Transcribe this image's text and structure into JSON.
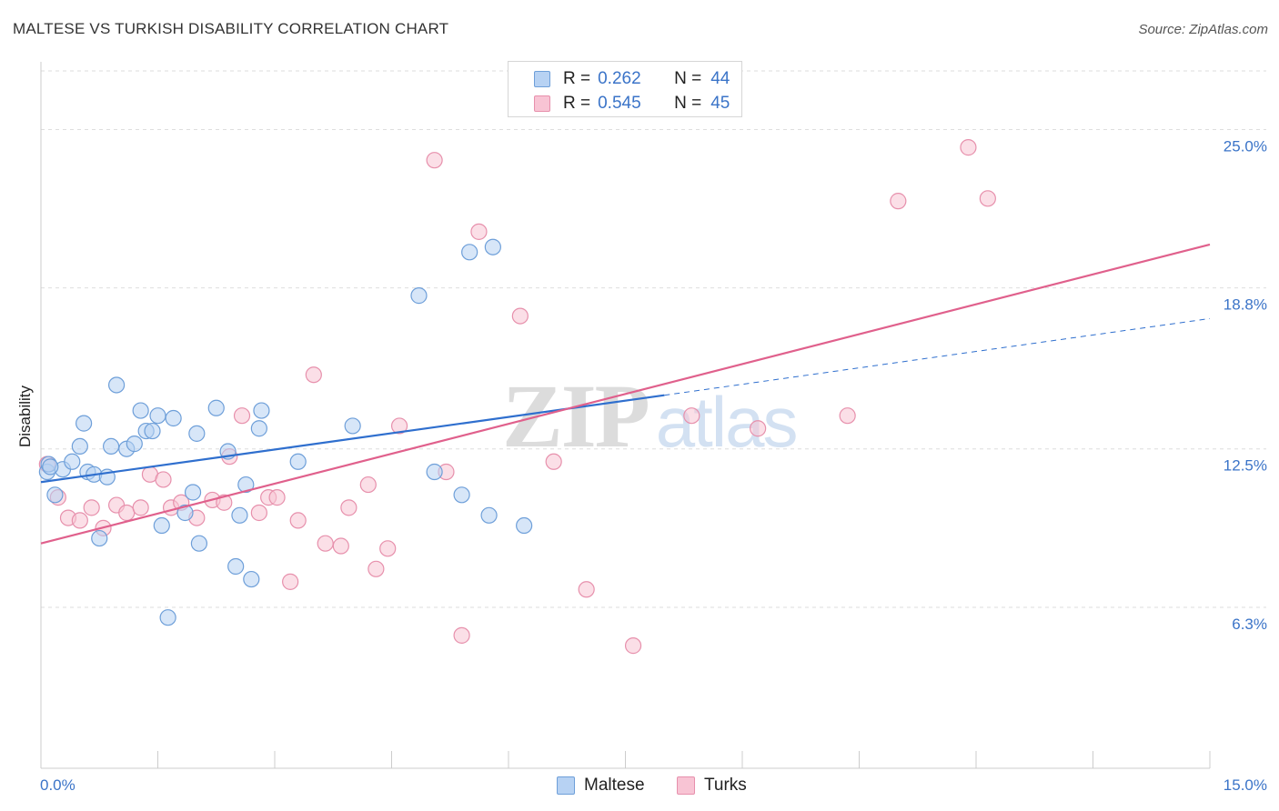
{
  "title": "MALTESE VS TURKISH DISABILITY CORRELATION CHART",
  "source": "Source: ZipAtlas.com",
  "watermark": {
    "zip": "ZIP",
    "atlas": "atlas"
  },
  "colors": {
    "maltese_fill": "#b7d2f3",
    "maltese_stroke": "#6e9fd9",
    "maltese_line": "#2f6fce",
    "turks_fill": "#f8c4d4",
    "turks_stroke": "#e790ac",
    "turks_line": "#e0608c",
    "grid": "#dedede",
    "tick_label": "#3b74c8"
  },
  "legend": {
    "rows": [
      {
        "r_label": "R =",
        "r_value": "0.262",
        "n_label": "N =",
        "n_value": "44"
      },
      {
        "r_label": "R =",
        "r_value": "0.545",
        "n_label": "N =",
        "n_value": "45"
      }
    ]
  },
  "bottom_legend": {
    "maltese": "Maltese",
    "turks": "Turks"
  },
  "chart_data": {
    "type": "scatter",
    "title": "MALTESE VS TURKISH DISABILITY CORRELATION CHART",
    "xlabel": "",
    "ylabel": "Disability",
    "xlim": [
      0,
      15
    ],
    "ylim": [
      0,
      27.4
    ],
    "x_tick_labels": [
      "0.0%",
      "15.0%"
    ],
    "x_tick_marks": [
      0,
      1.5,
      3,
      4.5,
      6,
      7.5,
      9,
      10.5,
      12,
      13.5,
      15
    ],
    "y_ticks": [
      {
        "value": 6.3,
        "label": "6.3%"
      },
      {
        "value": 12.5,
        "label": "12.5%"
      },
      {
        "value": 18.8,
        "label": "18.8%"
      },
      {
        "value": 25.0,
        "label": "25.0%"
      }
    ],
    "grid": true,
    "legend_position": "top-center",
    "series": [
      {
        "name": "Maltese",
        "r": 0.262,
        "n": 44,
        "trend": {
          "x0": 0,
          "y0": 11.2,
          "x1": 8.0,
          "y1": 14.6,
          "dash_to_x": 15.0,
          "dash_to_y": 17.6
        },
        "points": [
          [
            0.08,
            11.6
          ],
          [
            0.1,
            11.9
          ],
          [
            0.18,
            10.7
          ],
          [
            0.28,
            11.7
          ],
          [
            0.4,
            12.0
          ],
          [
            0.5,
            12.6
          ],
          [
            0.55,
            13.5
          ],
          [
            0.6,
            11.6
          ],
          [
            0.68,
            11.5
          ],
          [
            0.75,
            9.0
          ],
          [
            0.85,
            11.4
          ],
          [
            0.9,
            12.6
          ],
          [
            0.97,
            15.0
          ],
          [
            1.1,
            12.5
          ],
          [
            1.2,
            12.7
          ],
          [
            1.28,
            14.0
          ],
          [
            1.35,
            13.2
          ],
          [
            1.43,
            13.2
          ],
          [
            1.5,
            13.8
          ],
          [
            1.55,
            9.5
          ],
          [
            1.63,
            5.9
          ],
          [
            1.7,
            13.7
          ],
          [
            1.85,
            10.0
          ],
          [
            1.95,
            10.8
          ],
          [
            2.0,
            13.1
          ],
          [
            2.03,
            8.8
          ],
          [
            2.25,
            14.1
          ],
          [
            2.4,
            12.4
          ],
          [
            2.5,
            7.9
          ],
          [
            2.55,
            9.9
          ],
          [
            2.63,
            11.1
          ],
          [
            2.7,
            7.4
          ],
          [
            2.8,
            13.3
          ],
          [
            2.83,
            14.0
          ],
          [
            3.3,
            12.0
          ],
          [
            4.0,
            13.4
          ],
          [
            4.85,
            18.5
          ],
          [
            5.05,
            11.6
          ],
          [
            5.4,
            10.7
          ],
          [
            5.5,
            20.2
          ],
          [
            5.75,
            9.9
          ],
          [
            5.8,
            20.4
          ],
          [
            6.2,
            9.5
          ],
          [
            0.12,
            11.8
          ]
        ]
      },
      {
        "name": "Turks",
        "r": 0.545,
        "n": 45,
        "trend": {
          "x0": 0,
          "y0": 8.8,
          "x1": 15.0,
          "y1": 20.5
        },
        "points": [
          [
            0.08,
            11.9
          ],
          [
            0.22,
            10.6
          ],
          [
            0.35,
            9.8
          ],
          [
            0.5,
            9.7
          ],
          [
            0.65,
            10.2
          ],
          [
            0.8,
            9.4
          ],
          [
            0.97,
            10.3
          ],
          [
            1.1,
            10.0
          ],
          [
            1.28,
            10.2
          ],
          [
            1.4,
            11.5
          ],
          [
            1.57,
            11.3
          ],
          [
            1.67,
            10.2
          ],
          [
            1.8,
            10.4
          ],
          [
            2.0,
            9.8
          ],
          [
            2.2,
            10.5
          ],
          [
            2.35,
            10.4
          ],
          [
            2.42,
            12.2
          ],
          [
            2.58,
            13.8
          ],
          [
            2.8,
            10.0
          ],
          [
            2.92,
            10.6
          ],
          [
            3.03,
            10.6
          ],
          [
            3.2,
            7.3
          ],
          [
            3.3,
            9.7
          ],
          [
            3.5,
            15.4
          ],
          [
            3.65,
            8.8
          ],
          [
            3.85,
            8.7
          ],
          [
            3.95,
            10.2
          ],
          [
            4.2,
            11.1
          ],
          [
            4.3,
            7.8
          ],
          [
            4.45,
            8.6
          ],
          [
            4.6,
            13.4
          ],
          [
            5.05,
            23.8
          ],
          [
            5.2,
            11.6
          ],
          [
            5.4,
            5.2
          ],
          [
            5.62,
            21.0
          ],
          [
            6.15,
            17.7
          ],
          [
            6.58,
            12.0
          ],
          [
            7.0,
            7.0
          ],
          [
            7.6,
            4.8
          ],
          [
            8.35,
            13.8
          ],
          [
            9.2,
            13.3
          ],
          [
            10.35,
            13.8
          ],
          [
            11.0,
            22.2
          ],
          [
            11.9,
            24.3
          ],
          [
            12.15,
            22.3
          ]
        ]
      }
    ]
  }
}
